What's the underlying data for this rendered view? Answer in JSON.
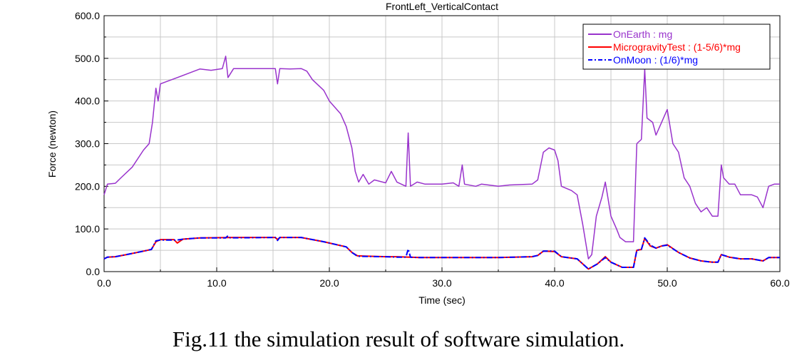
{
  "caption": "Fig.11 the simulation result of software simulation.",
  "chart_data": {
    "type": "line",
    "title": "FrontLeft_VerticalContact",
    "xlabel": "Time (sec)",
    "ylabel": "Force (newton)",
    "xlim": [
      0,
      60
    ],
    "ylim": [
      0,
      600
    ],
    "x_ticks": [
      "0.0",
      "10.0",
      "20.0",
      "30.0",
      "40.0",
      "50.0",
      "60.0"
    ],
    "y_ticks": [
      "0.0",
      "100.0",
      "200.0",
      "300.0",
      "400.0",
      "500.0",
      "600.0"
    ],
    "grid": true,
    "legend_position": "top-right",
    "series": [
      {
        "name": "OnEarth : mg",
        "color": "#9933cc",
        "style": "solid",
        "points": [
          [
            0,
            180
          ],
          [
            0.3,
            205
          ],
          [
            1,
            207
          ],
          [
            1.5,
            220
          ],
          [
            2.5,
            245
          ],
          [
            3.5,
            285
          ],
          [
            4.0,
            300
          ],
          [
            4.3,
            350
          ],
          [
            4.6,
            430
          ],
          [
            4.8,
            400
          ],
          [
            5.0,
            440
          ],
          [
            5.5,
            445
          ],
          [
            6.5,
            455
          ],
          [
            7.5,
            465
          ],
          [
            8.0,
            470
          ],
          [
            8.5,
            475
          ],
          [
            9.5,
            472
          ],
          [
            10.5,
            476
          ],
          [
            10.8,
            505
          ],
          [
            11.0,
            455
          ],
          [
            11.5,
            476
          ],
          [
            15.2,
            476
          ],
          [
            15.4,
            440
          ],
          [
            15.6,
            476
          ],
          [
            16.5,
            475
          ],
          [
            17.5,
            476
          ],
          [
            18.0,
            470
          ],
          [
            18.5,
            450
          ],
          [
            19.5,
            425
          ],
          [
            20.0,
            400
          ],
          [
            21.0,
            370
          ],
          [
            21.5,
            340
          ],
          [
            22.0,
            290
          ],
          [
            22.3,
            235
          ],
          [
            22.6,
            210
          ],
          [
            23.0,
            228
          ],
          [
            23.5,
            205
          ],
          [
            24.0,
            215
          ],
          [
            25.0,
            208
          ],
          [
            25.5,
            235
          ],
          [
            26.0,
            210
          ],
          [
            26.8,
            200
          ],
          [
            27.0,
            325
          ],
          [
            27.2,
            200
          ],
          [
            27.8,
            210
          ],
          [
            28.5,
            205
          ],
          [
            30.0,
            205
          ],
          [
            31.0,
            208
          ],
          [
            31.5,
            200
          ],
          [
            31.8,
            250
          ],
          [
            32.0,
            205
          ],
          [
            33.0,
            200
          ],
          [
            33.5,
            205
          ],
          [
            35.0,
            200
          ],
          [
            36.0,
            203
          ],
          [
            38.0,
            205
          ],
          [
            38.5,
            215
          ],
          [
            39.0,
            280
          ],
          [
            39.5,
            290
          ],
          [
            40.0,
            285
          ],
          [
            40.3,
            260
          ],
          [
            40.6,
            200
          ],
          [
            41.5,
            190
          ],
          [
            42.0,
            180
          ],
          [
            42.5,
            110
          ],
          [
            43.0,
            30
          ],
          [
            43.3,
            40
          ],
          [
            43.7,
            130
          ],
          [
            44.2,
            175
          ],
          [
            44.5,
            210
          ],
          [
            45.0,
            130
          ],
          [
            45.5,
            100
          ],
          [
            45.8,
            80
          ],
          [
            46.3,
            70
          ],
          [
            47.0,
            70
          ],
          [
            47.3,
            300
          ],
          [
            47.7,
            310
          ],
          [
            48.0,
            475
          ],
          [
            48.2,
            360
          ],
          [
            48.7,
            350
          ],
          [
            49.0,
            320
          ],
          [
            49.5,
            350
          ],
          [
            50.0,
            380
          ],
          [
            50.5,
            300
          ],
          [
            51.0,
            280
          ],
          [
            51.5,
            220
          ],
          [
            52.0,
            200
          ],
          [
            52.5,
            160
          ],
          [
            53.0,
            140
          ],
          [
            53.5,
            150
          ],
          [
            54.0,
            130
          ],
          [
            54.5,
            130
          ],
          [
            54.8,
            250
          ],
          [
            55.0,
            220
          ],
          [
            55.5,
            205
          ],
          [
            56.0,
            205
          ],
          [
            56.5,
            180
          ],
          [
            57.5,
            180
          ],
          [
            58.0,
            175
          ],
          [
            58.5,
            150
          ],
          [
            59.0,
            200
          ],
          [
            59.5,
            205
          ],
          [
            60.0,
            205
          ]
        ]
      },
      {
        "name": "MicrogravityTest : (1-5/6)*mg",
        "color": "#ff0000",
        "style": "solid",
        "points": [
          [
            0,
            30
          ],
          [
            0.3,
            34
          ],
          [
            1,
            35
          ],
          [
            2,
            40
          ],
          [
            3.5,
            48
          ],
          [
            4.2,
            52
          ],
          [
            4.6,
            70
          ],
          [
            5.0,
            75
          ],
          [
            6.2,
            75
          ],
          [
            6.5,
            67
          ],
          [
            7.0,
            76
          ],
          [
            8.5,
            79
          ],
          [
            11.5,
            80
          ],
          [
            15.2,
            80
          ],
          [
            15.4,
            75
          ],
          [
            15.6,
            80
          ],
          [
            17.5,
            80
          ],
          [
            19.5,
            70
          ],
          [
            21.5,
            58
          ],
          [
            22.0,
            45
          ],
          [
            22.5,
            37
          ],
          [
            25.0,
            35
          ],
          [
            26.0,
            35
          ],
          [
            28.0,
            33
          ],
          [
            30.0,
            33
          ],
          [
            32.0,
            33
          ],
          [
            35.0,
            33
          ],
          [
            38.0,
            35
          ],
          [
            38.5,
            38
          ],
          [
            39.0,
            48
          ],
          [
            40.0,
            47
          ],
          [
            40.6,
            35
          ],
          [
            42.0,
            30
          ],
          [
            43.0,
            6
          ],
          [
            43.8,
            18
          ],
          [
            44.5,
            35
          ],
          [
            45.0,
            22
          ],
          [
            46.0,
            10
          ],
          [
            47.0,
            10
          ],
          [
            47.3,
            50
          ],
          [
            47.7,
            52
          ],
          [
            48.0,
            78
          ],
          [
            48.5,
            60
          ],
          [
            49.0,
            55
          ],
          [
            49.5,
            60
          ],
          [
            50.0,
            63
          ],
          [
            51.0,
            45
          ],
          [
            52.0,
            32
          ],
          [
            53.0,
            25
          ],
          [
            54.0,
            22
          ],
          [
            54.5,
            22
          ],
          [
            54.8,
            40
          ],
          [
            55.5,
            34
          ],
          [
            56.5,
            30
          ],
          [
            57.5,
            30
          ],
          [
            58.5,
            25
          ],
          [
            59.0,
            33
          ],
          [
            60.0,
            33
          ]
        ]
      },
      {
        "name": "OnMoon : (1/6)*mg",
        "color": "#0000ff",
        "style": "dashdot",
        "points": [
          [
            0,
            30
          ],
          [
            0.3,
            34
          ],
          [
            1,
            35
          ],
          [
            2,
            40
          ],
          [
            3.5,
            48
          ],
          [
            4.2,
            52
          ],
          [
            4.6,
            72
          ],
          [
            5.0,
            74
          ],
          [
            6.5,
            74
          ],
          [
            7.0,
            76
          ],
          [
            8.5,
            79
          ],
          [
            10.8,
            79
          ],
          [
            11.0,
            84
          ],
          [
            11.2,
            79
          ],
          [
            15.2,
            80
          ],
          [
            15.4,
            73
          ],
          [
            15.6,
            80
          ],
          [
            17.5,
            80
          ],
          [
            19.5,
            70
          ],
          [
            21.5,
            58
          ],
          [
            22.0,
            45
          ],
          [
            22.5,
            36
          ],
          [
            25.0,
            35
          ],
          [
            26.0,
            34
          ],
          [
            26.8,
            34
          ],
          [
            27.0,
            53
          ],
          [
            27.2,
            34
          ],
          [
            28.0,
            33
          ],
          [
            30.0,
            33
          ],
          [
            32.0,
            33
          ],
          [
            35.0,
            33
          ],
          [
            38.0,
            35
          ],
          [
            38.5,
            38
          ],
          [
            39.0,
            48
          ],
          [
            40.0,
            48
          ],
          [
            40.6,
            35
          ],
          [
            42.0,
            30
          ],
          [
            43.0,
            6
          ],
          [
            43.8,
            18
          ],
          [
            44.5,
            33
          ],
          [
            45.0,
            22
          ],
          [
            46.0,
            10
          ],
          [
            47.0,
            10
          ],
          [
            47.3,
            50
          ],
          [
            47.7,
            52
          ],
          [
            48.0,
            79
          ],
          [
            48.5,
            62
          ],
          [
            49.0,
            55
          ],
          [
            49.5,
            60
          ],
          [
            50.0,
            62
          ],
          [
            51.0,
            45
          ],
          [
            52.0,
            32
          ],
          [
            53.0,
            25
          ],
          [
            54.0,
            22
          ],
          [
            54.5,
            22
          ],
          [
            54.8,
            40
          ],
          [
            55.5,
            34
          ],
          [
            56.5,
            30
          ],
          [
            57.5,
            30
          ],
          [
            58.5,
            25
          ],
          [
            59.0,
            33
          ],
          [
            60.0,
            33
          ]
        ]
      }
    ]
  }
}
